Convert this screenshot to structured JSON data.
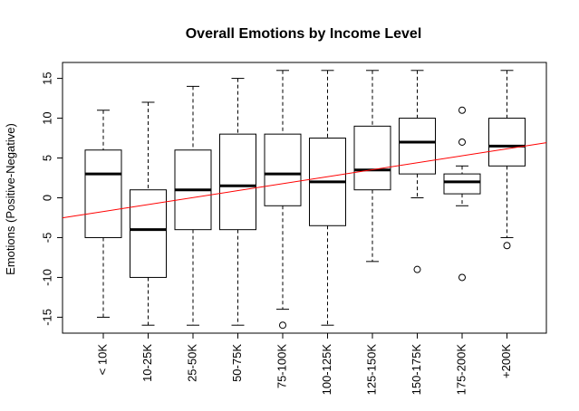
{
  "chart_data": {
    "type": "boxplot",
    "title": "Overall Emotions by Income Level",
    "xlabel": "",
    "ylabel": "Emotions (Positive-Negative)",
    "ylim": [
      -17,
      17
    ],
    "yticks": [
      -15,
      -10,
      -5,
      0,
      5,
      10,
      15
    ],
    "grid": false,
    "categories": [
      "< 10K",
      "10-25K",
      "25-50K",
      "50-75K",
      "75-100K",
      "100-125K",
      "125-150K",
      "150-175K",
      "175-200K",
      "+200K"
    ],
    "boxes": [
      {
        "whisker_low": -15,
        "q1": -5,
        "median": 3,
        "q3": 6,
        "whisker_high": 11,
        "outliers": []
      },
      {
        "whisker_low": -16,
        "q1": -10,
        "median": -4,
        "q3": 1,
        "whisker_high": 12,
        "outliers": []
      },
      {
        "whisker_low": -16,
        "q1": -4,
        "median": 1,
        "q3": 6,
        "whisker_high": 14,
        "outliers": []
      },
      {
        "whisker_low": -16,
        "q1": -4,
        "median": 1.5,
        "q3": 8,
        "whisker_high": 15,
        "outliers": []
      },
      {
        "whisker_low": -14,
        "q1": -1,
        "median": 3,
        "q3": 8,
        "whisker_high": 16,
        "outliers": [
          -16
        ]
      },
      {
        "whisker_low": -16,
        "q1": -3.5,
        "median": 2,
        "q3": 7.5,
        "whisker_high": 16,
        "outliers": []
      },
      {
        "whisker_low": -8,
        "q1": 1,
        "median": 3.5,
        "q3": 9,
        "whisker_high": 16,
        "outliers": []
      },
      {
        "whisker_low": 0,
        "q1": 3,
        "median": 7,
        "q3": 10,
        "whisker_high": 16,
        "outliers": [
          -9
        ]
      },
      {
        "whisker_low": -1,
        "q1": 0.5,
        "median": 2,
        "q3": 3,
        "whisker_high": 4,
        "outliers": [
          7,
          11,
          -10
        ]
      },
      {
        "whisker_low": -5,
        "q1": 4,
        "median": 6.5,
        "q3": 10,
        "whisker_high": 16,
        "outliers": [
          -6
        ]
      }
    ],
    "trend_line": {
      "color": "#ff0000",
      "y_at_x0": -2.6,
      "slope": 0.875
    }
  }
}
